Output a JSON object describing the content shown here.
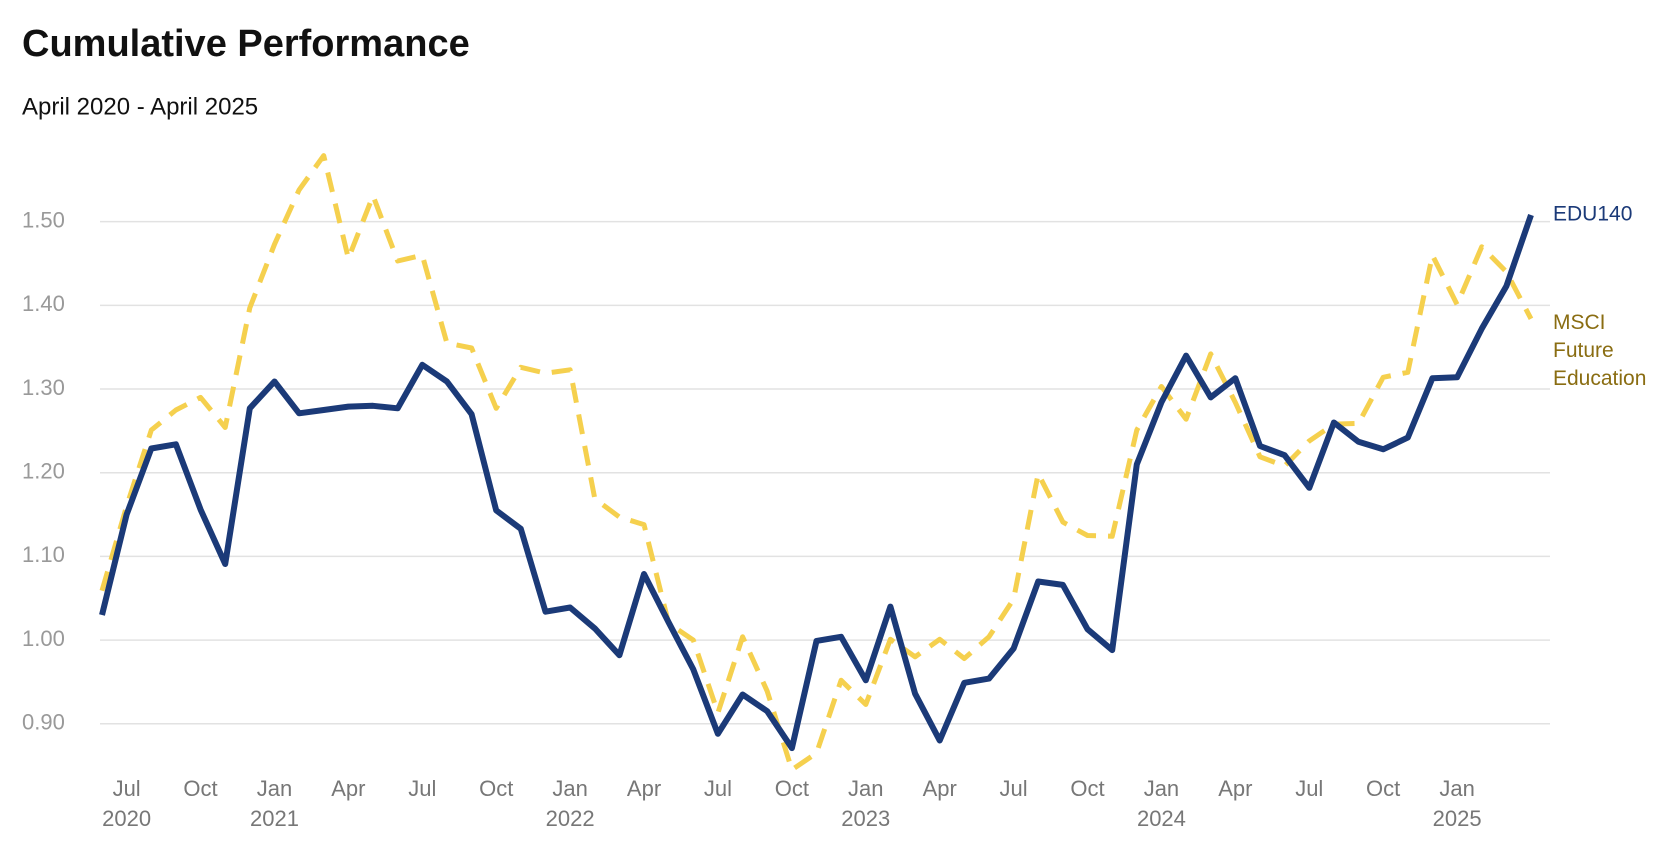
{
  "chart_data": {
    "type": "line",
    "title": "Cumulative Performance",
    "subtitle": "April 2020 - April 2025",
    "x": [
      "2020-06",
      "2020-07",
      "2020-08",
      "2020-09",
      "2020-10",
      "2020-11",
      "2020-12",
      "2021-01",
      "2021-02",
      "2021-03",
      "2021-04",
      "2021-05",
      "2021-06",
      "2021-07",
      "2021-08",
      "2021-09",
      "2021-10",
      "2021-11",
      "2021-12",
      "2022-01",
      "2022-02",
      "2022-03",
      "2022-04",
      "2022-05",
      "2022-06",
      "2022-07",
      "2022-08",
      "2022-09",
      "2022-10",
      "2022-11",
      "2022-12",
      "2023-01",
      "2023-02",
      "2023-03",
      "2023-04",
      "2023-05",
      "2023-06",
      "2023-07",
      "2023-08",
      "2023-09",
      "2023-10",
      "2023-11",
      "2023-12",
      "2024-01",
      "2024-02",
      "2024-03",
      "2024-04",
      "2024-05",
      "2024-06",
      "2024-07",
      "2024-08",
      "2024-09",
      "2024-10",
      "2024-11",
      "2024-12",
      "2025-01",
      "2025-02",
      "2025-03",
      "2025-04"
    ],
    "series": [
      {
        "name": "EDU140",
        "color": "#1b3a78",
        "dashed": false,
        "values": [
          1.03,
          1.15,
          1.229,
          1.234,
          1.156,
          1.091,
          1.277,
          1.309,
          1.271,
          1.275,
          1.279,
          1.28,
          1.277,
          1.329,
          1.309,
          1.27,
          1.155,
          1.133,
          1.034,
          1.039,
          1.014,
          0.982,
          1.079,
          1.021,
          0.965,
          0.888,
          0.935,
          0.915,
          0.871,
          0.999,
          1.004,
          0.952,
          1.04,
          0.936,
          0.88,
          0.949,
          0.954,
          0.99,
          1.07,
          1.066,
          1.013,
          0.988,
          1.21,
          1.284,
          1.34,
          1.29,
          1.313,
          1.232,
          1.221,
          1.182,
          1.26,
          1.237,
          1.228,
          1.242,
          1.313,
          1.314,
          1.372,
          1.423,
          1.508
        ]
      },
      {
        "name": "MSCI Future Education",
        "color": "#f5d04e",
        "label_color": "#8a6d12",
        "dashed": true,
        "values": [
          1.059,
          1.16,
          1.251,
          1.275,
          1.29,
          1.254,
          1.397,
          1.473,
          1.538,
          1.579,
          1.456,
          1.531,
          1.453,
          1.46,
          1.355,
          1.349,
          1.277,
          1.326,
          1.319,
          1.323,
          1.169,
          1.147,
          1.138,
          1.02,
          1.0,
          0.913,
          1.004,
          0.939,
          0.845,
          0.865,
          0.952,
          0.923,
          1.001,
          0.98,
          1.001,
          0.978,
          1.004,
          1.049,
          1.199,
          1.141,
          1.125,
          1.124,
          1.251,
          1.303,
          1.264,
          1.342,
          1.284,
          1.219,
          1.208,
          1.238,
          1.258,
          1.259,
          1.314,
          1.32,
          1.46,
          1.401,
          1.47,
          1.44,
          1.384
        ]
      }
    ],
    "ylim": [
      0.84,
      1.6
    ],
    "yticks": [
      {
        "value": 0.9,
        "label": "0.90"
      },
      {
        "value": 1.0,
        "label": "1.00"
      },
      {
        "value": 1.1,
        "label": "1.10"
      },
      {
        "value": 1.2,
        "label": "1.20"
      },
      {
        "value": 1.3,
        "label": "1.30"
      },
      {
        "value": 1.4,
        "label": "1.40"
      },
      {
        "value": 1.5,
        "label": "1.50"
      }
    ],
    "xticks": [
      {
        "value": "2020-07",
        "label": "Jul 2020"
      },
      {
        "value": "2020-10",
        "label": "Oct"
      },
      {
        "value": "2021-01",
        "label": "Jan 2021"
      },
      {
        "value": "2021-04",
        "label": "Apr"
      },
      {
        "value": "2021-07",
        "label": "Jul"
      },
      {
        "value": "2021-10",
        "label": "Oct"
      },
      {
        "value": "2022-01",
        "label": "Jan 2022"
      },
      {
        "value": "2022-04",
        "label": "Apr"
      },
      {
        "value": "2022-07",
        "label": "Jul"
      },
      {
        "value": "2022-10",
        "label": "Oct"
      },
      {
        "value": "2023-01",
        "label": "Jan 2023"
      },
      {
        "value": "2023-04",
        "label": "Apr"
      },
      {
        "value": "2023-07",
        "label": "Jul"
      },
      {
        "value": "2023-10",
        "label": "Oct"
      },
      {
        "value": "2024-01",
        "label": "Jan 2024"
      },
      {
        "value": "2024-04",
        "label": "Apr"
      },
      {
        "value": "2024-07",
        "label": "Jul"
      },
      {
        "value": "2024-10",
        "label": "Oct"
      },
      {
        "value": "2025-01",
        "label": "Jan 2025"
      }
    ],
    "grid": true
  }
}
